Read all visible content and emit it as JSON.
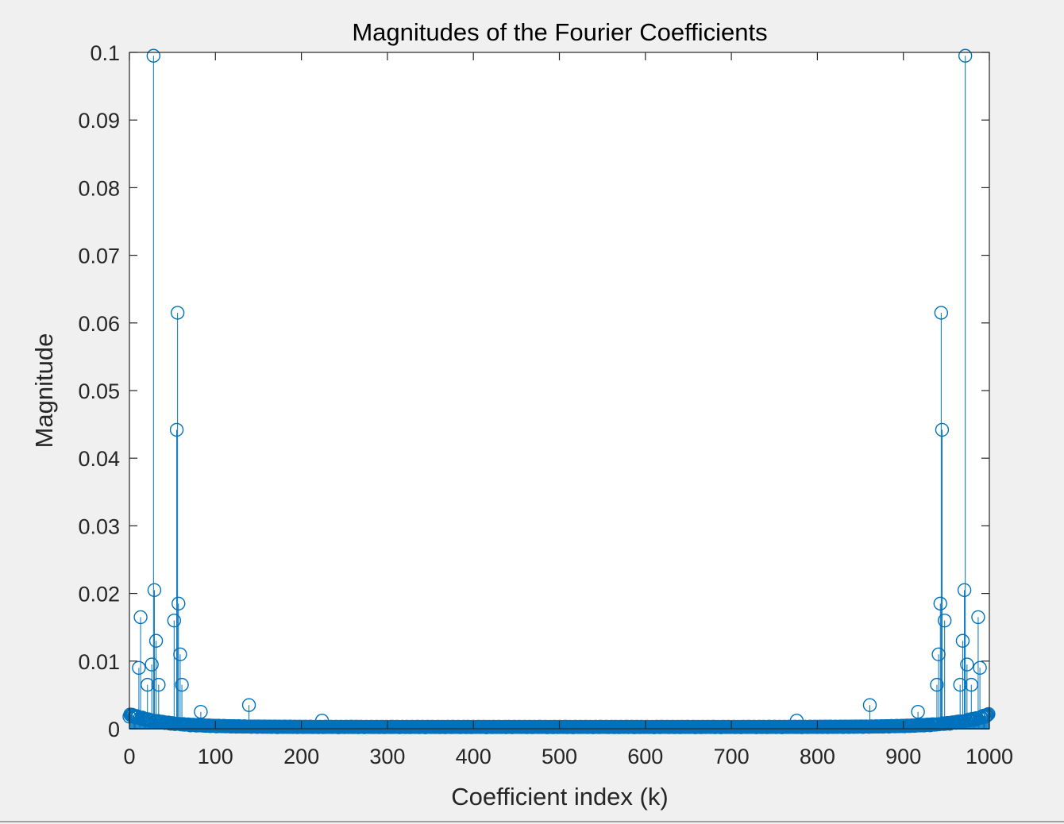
{
  "colors": {
    "figure_background": "#f0f0f0",
    "axes_background": "#ffffff",
    "axes_color": "#262626",
    "series_color": "#0072bd"
  },
  "chart_data": {
    "type": "stem",
    "title": "Magnitudes of the Fourier Coefficients",
    "xlabel": "Coefficient index (k)",
    "ylabel": "Magnitude",
    "xlim": [
      0,
      1000
    ],
    "ylim": [
      0,
      0.1
    ],
    "xticks": [
      0,
      100,
      200,
      300,
      400,
      500,
      600,
      700,
      800,
      900,
      1000
    ],
    "xtick_labels": [
      "0",
      "100",
      "200",
      "300",
      "400",
      "500",
      "600",
      "700",
      "800",
      "900",
      "1000"
    ],
    "yticks": [
      0,
      0.01,
      0.02,
      0.03,
      0.04,
      0.05,
      0.06,
      0.07,
      0.08,
      0.09,
      0.1
    ],
    "ytick_labels": [
      "0",
      "0.01",
      "0.02",
      "0.03",
      "0.04",
      "0.05",
      "0.06",
      "0.07",
      "0.08",
      "0.09",
      "0.1"
    ],
    "grid": false,
    "box": true,
    "marker": "circle",
    "series": [
      {
        "n_points": 1000,
        "peaks": [
          {
            "k": 11,
            "value": 0.009
          },
          {
            "k": 13,
            "value": 0.0165
          },
          {
            "k": 21,
            "value": 0.0065
          },
          {
            "k": 26,
            "value": 0.0095
          },
          {
            "k": 28,
            "value": 0.0995
          },
          {
            "k": 29,
            "value": 0.0205
          },
          {
            "k": 31,
            "value": 0.013
          },
          {
            "k": 34,
            "value": 0.0065
          },
          {
            "k": 52,
            "value": 0.016
          },
          {
            "k": 55,
            "value": 0.0442
          },
          {
            "k": 56,
            "value": 0.0615
          },
          {
            "k": 57,
            "value": 0.0185
          },
          {
            "k": 59,
            "value": 0.011
          },
          {
            "k": 61,
            "value": 0.0065
          },
          {
            "k": 83,
            "value": 0.0025
          },
          {
            "k": 139,
            "value": 0.0035
          },
          {
            "k": 224,
            "value": 0.0012
          },
          {
            "k": 776,
            "value": 0.0012
          },
          {
            "k": 861,
            "value": 0.0035
          },
          {
            "k": 917,
            "value": 0.0025
          },
          {
            "k": 939,
            "value": 0.0065
          },
          {
            "k": 941,
            "value": 0.011
          },
          {
            "k": 943,
            "value": 0.0185
          },
          {
            "k": 944,
            "value": 0.0615
          },
          {
            "k": 945,
            "value": 0.0442
          },
          {
            "k": 948,
            "value": 0.016
          },
          {
            "k": 966,
            "value": 0.0065
          },
          {
            "k": 969,
            "value": 0.013
          },
          {
            "k": 971,
            "value": 0.0205
          },
          {
            "k": 972,
            "value": 0.0995
          },
          {
            "k": 974,
            "value": 0.0095
          },
          {
            "k": 979,
            "value": 0.0065
          },
          {
            "k": 987,
            "value": 0.0165
          },
          {
            "k": 989,
            "value": 0.009
          }
        ],
        "baseline_level_near_edges": 0.0018,
        "baseline_level_center": 0.0002
      }
    ]
  }
}
